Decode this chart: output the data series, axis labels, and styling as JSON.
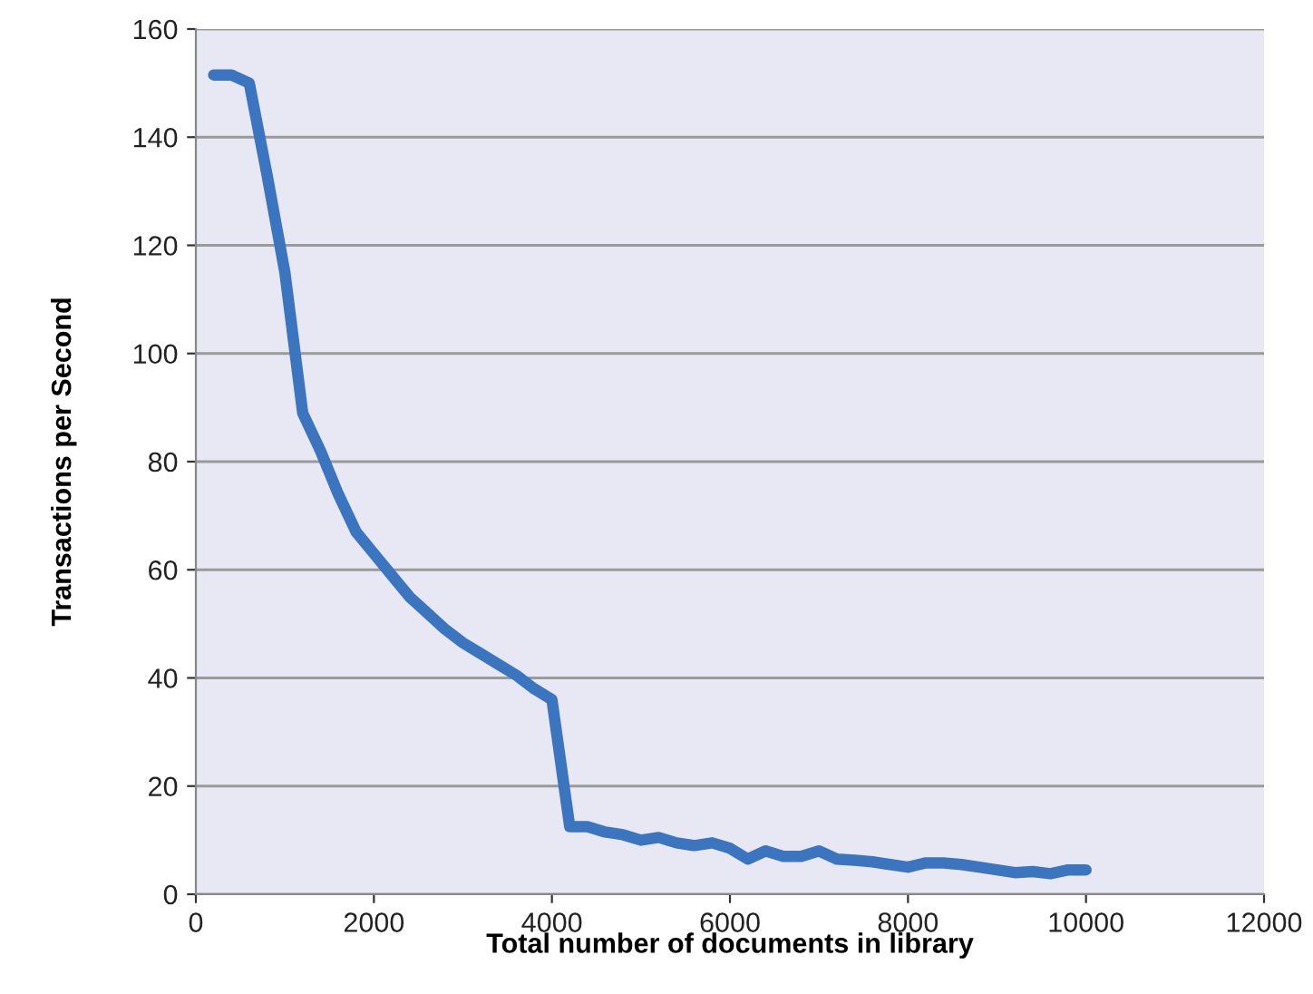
{
  "chart_data": {
    "type": "line",
    "xlabel": "Total number of documents in library",
    "ylabel": "Transactions per Second",
    "xlim": [
      0,
      12000
    ],
    "xticks": [
      0,
      2000,
      4000,
      6000,
      8000,
      10000,
      12000
    ],
    "ylim": [
      0,
      160
    ],
    "yticks": [
      0,
      20,
      40,
      60,
      80,
      100,
      120,
      140,
      160
    ],
    "grid": "y",
    "legend": false,
    "marker": "none",
    "line_style": "solid",
    "series": [
      {
        "color": "#3b74bf",
        "x": [
          200,
          400,
          600,
          800,
          1000,
          1200,
          1400,
          1600,
          1800,
          2000,
          2200,
          2400,
          2600,
          2800,
          3000,
          3200,
          3400,
          3600,
          3800,
          4000,
          4200,
          4400,
          4600,
          4800,
          5000,
          5200,
          5400,
          5600,
          5800,
          6000,
          6200,
          6400,
          6600,
          6800,
          7000,
          7200,
          7400,
          7600,
          7800,
          8000,
          8200,
          8400,
          8600,
          8800,
          9000,
          9200,
          9400,
          9600,
          9800,
          10000
        ],
        "values": [
          151.5,
          151.5,
          150,
          133,
          115,
          89,
          82,
          74,
          67,
          63,
          59,
          55,
          52,
          49,
          46.5,
          44.5,
          42.5,
          40.5,
          38,
          36,
          12.5,
          12.5,
          11.5,
          11,
          10,
          10.5,
          9.5,
          9,
          9.5,
          8.5,
          6.5,
          8,
          7,
          7,
          8,
          6.5,
          6.3,
          6,
          5.5,
          5,
          5.8,
          5.8,
          5.5,
          5,
          4.5,
          4,
          4.2,
          3.8,
          4.5,
          4.5
        ]
      }
    ]
  }
}
